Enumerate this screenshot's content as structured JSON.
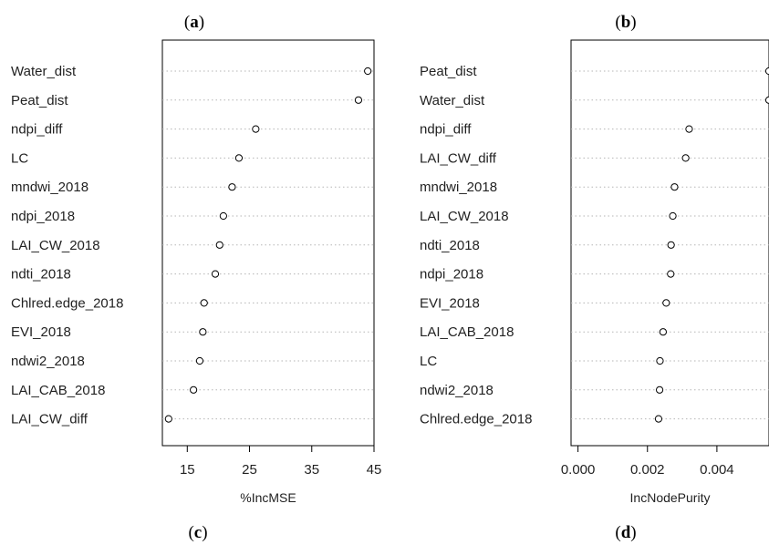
{
  "panel_labels": {
    "a": "a",
    "b": "b",
    "c": "c",
    "d": "d"
  },
  "chart_data": [
    {
      "type": "scatter",
      "style": "dotchart",
      "xlabel": "%IncMSE",
      "xticks": [
        15,
        25,
        35,
        45
      ],
      "xlim": [
        11,
        45
      ],
      "grid": "horizontal dotted",
      "variables": [
        "Water_dist",
        "Peat_dist",
        "ndpi_diff",
        "LC",
        "mndwi_2018",
        "ndpi_2018",
        "LAI_CW_2018",
        "ndti_2018",
        "Chlred.edge_2018",
        "EVI_2018",
        "ndwi2_2018",
        "LAI_CAB_2018",
        "LAI_CW_diff"
      ],
      "values": [
        44.0,
        42.5,
        26.0,
        23.3,
        22.2,
        20.8,
        20.2,
        19.5,
        17.7,
        17.5,
        17.0,
        16.0,
        12.0
      ]
    },
    {
      "type": "scatter",
      "style": "dotchart",
      "xlabel": "IncNodePurity",
      "xticks": [
        "0.000",
        "0.002",
        "0.004"
      ],
      "xtick_values": [
        0.0,
        0.002,
        0.004
      ],
      "xlim": [
        -0.0002,
        0.0055
      ],
      "grid": "horizontal dotted",
      "variables": [
        "Peat_dist",
        "Water_dist",
        "ndpi_diff",
        "LAI_CW_diff",
        "mndwi_2018",
        "LAI_CW_2018",
        "ndti_2018",
        "ndpi_2018",
        "EVI_2018",
        "LAI_CAB_2018",
        "LC",
        "ndwi2_2018",
        "Chlred.edge_2018"
      ],
      "values": [
        0.0055,
        0.0055,
        0.0032,
        0.0031,
        0.00278,
        0.00273,
        0.00268,
        0.00267,
        0.00254,
        0.00245,
        0.00236,
        0.00235,
        0.00232
      ]
    }
  ]
}
